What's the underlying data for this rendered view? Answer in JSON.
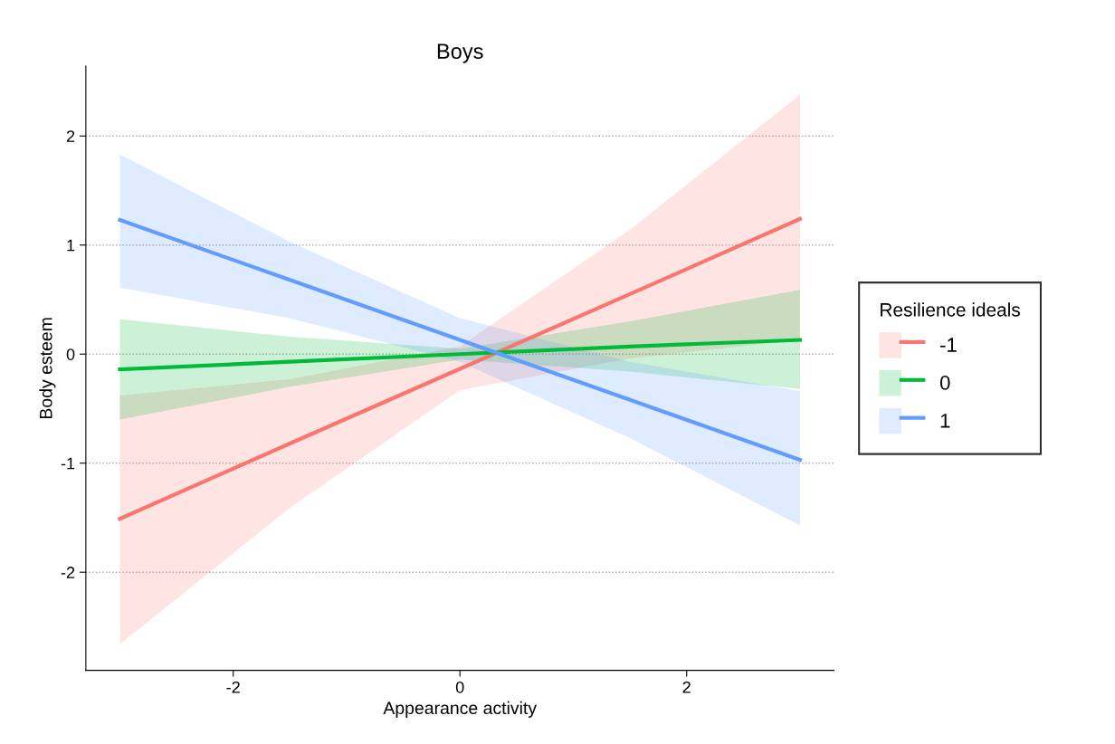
{
  "chart_data": {
    "type": "line",
    "title": "Boys",
    "xlabel": "Appearance activity",
    "ylabel": "Body esteem",
    "legend_title": "Resilience ideals",
    "x": [
      -3,
      -1.5,
      0,
      1.5,
      3
    ],
    "series": [
      {
        "name": "-1",
        "color": "#f8766d",
        "values": [
          -1.51,
          -0.82,
          -0.135,
          0.55,
          1.24
        ],
        "lower": [
          -2.66,
          -1.41,
          -0.33,
          -0.04,
          0.13
        ],
        "upper": [
          -0.38,
          -0.23,
          0.07,
          1.14,
          2.38
        ]
      },
      {
        "name": "0",
        "color": "#00ba38",
        "values": [
          -0.14,
          -0.07,
          0,
          0.07,
          0.13
        ],
        "lower": [
          -0.6,
          -0.3,
          -0.05,
          -0.16,
          -0.32
        ],
        "upper": [
          0.32,
          0.16,
          0.05,
          0.3,
          0.59
        ]
      },
      {
        "name": "1",
        "color": "#619cff",
        "values": [
          1.23,
          0.68,
          0.13,
          -0.42,
          -0.97
        ],
        "lower": [
          0.61,
          0.33,
          -0.07,
          -0.77,
          -1.57
        ],
        "upper": [
          1.83,
          1.03,
          0.33,
          -0.07,
          -0.34
        ]
      }
    ],
    "xlim": [
      -3.3,
      3.3
    ],
    "ylim": [
      -2.9,
      2.64
    ],
    "xticks": [
      -2,
      0,
      2
    ],
    "yticks": [
      -2,
      -1,
      0,
      1,
      2
    ],
    "grid": "y",
    "legend": "right",
    "marker": "none",
    "line_style": "solid"
  }
}
